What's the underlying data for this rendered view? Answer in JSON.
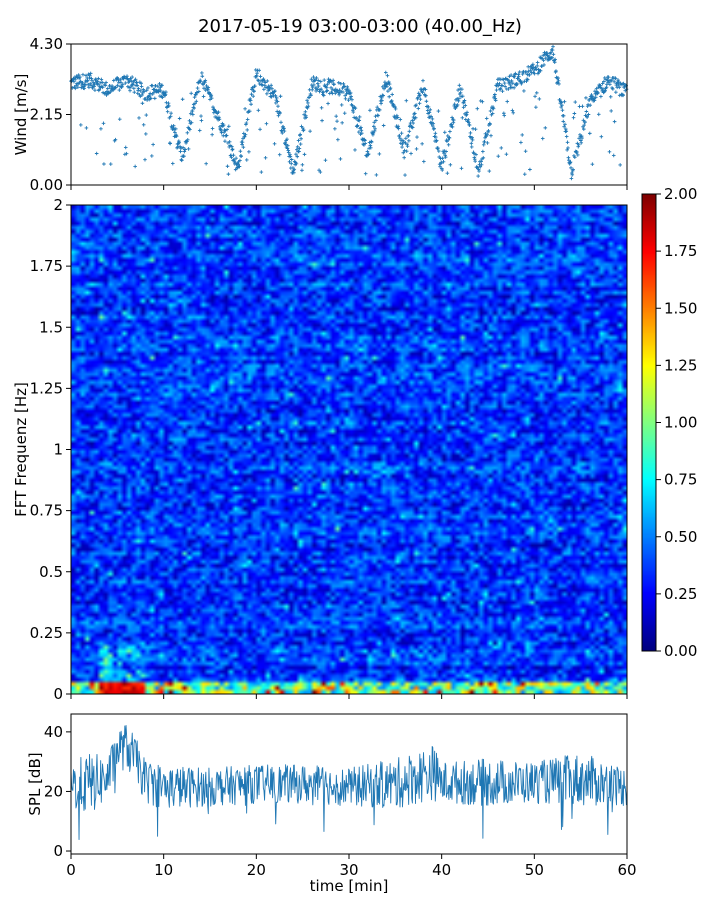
{
  "title": "2017-05-19 03:00-03:00 (40.00_Hz)",
  "chart_data": [
    {
      "type": "scatter",
      "panel": "wind",
      "ylabel": "Wind [m/s]",
      "ylim": [
        0,
        4.3
      ],
      "xlim": [
        0,
        60
      ],
      "yticks": [
        "0.00",
        "2.15",
        "4.30"
      ],
      "yticks_values": [
        0,
        2.15,
        4.3
      ],
      "xticks_values": [
        0,
        10,
        20,
        30,
        40,
        50,
        60
      ],
      "xticklabels_visible": false,
      "marker": "+",
      "color": "#1f77b4",
      "series_anchors": {
        "x": [
          0,
          2,
          4,
          6,
          8,
          10,
          12,
          14,
          16,
          18,
          20,
          22,
          24,
          26,
          28,
          30,
          32,
          34,
          36,
          38,
          40,
          42,
          44,
          46,
          48,
          50,
          52,
          54,
          56,
          58,
          60
        ],
        "y": [
          3.1,
          3.2,
          2.9,
          3.2,
          2.8,
          2.9,
          0.8,
          3.3,
          2.0,
          0.5,
          3.4,
          2.7,
          0.4,
          3.1,
          3.0,
          2.8,
          0.9,
          3.3,
          1.0,
          3.1,
          0.5,
          3.0,
          0.4,
          3.0,
          3.2,
          3.5,
          4.1,
          0.4,
          2.5,
          3.2,
          2.8
        ]
      }
    },
    {
      "type": "heatmap",
      "panel": "spectrogram",
      "ylabel": "FFT Frequenz [Hz]",
      "ylim": [
        0,
        2
      ],
      "xlim": [
        0,
        60
      ],
      "yticks": [
        "0",
        "0.25",
        "0.5",
        "0.75",
        "1",
        "1.25",
        "1.5",
        "1.75",
        "2"
      ],
      "yticks_values": [
        0,
        0.25,
        0.5,
        0.75,
        1,
        1.25,
        1.5,
        1.75,
        2
      ],
      "xticks_values": [
        0,
        10,
        20,
        30,
        40,
        50,
        60
      ],
      "xticklabels_visible": false,
      "colormap": "jet",
      "vmin": 0,
      "vmax": 2,
      "colorbar_ticks": [
        "0.00",
        "0.25",
        "0.50",
        "0.75",
        "1.00",
        "1.25",
        "1.50",
        "1.75",
        "2.00"
      ],
      "colorbar_ticks_values": [
        0,
        0.25,
        0.5,
        0.75,
        1,
        1.25,
        1.5,
        1.75,
        2
      ],
      "n_time_bins": 120,
      "n_freq_bins": 120,
      "typical_value": 0.35,
      "low_freq_row_max": 2.0,
      "hotspot_x_range_min": [
        3,
        8
      ]
    },
    {
      "type": "line",
      "panel": "spl",
      "xlabel": "time [min]",
      "ylabel": "SPL [dB]",
      "xlim": [
        0,
        60
      ],
      "ylim": [
        -1,
        46
      ],
      "xticks": [
        "0",
        "10",
        "20",
        "30",
        "40",
        "50",
        "60"
      ],
      "xticks_values": [
        0,
        10,
        20,
        30,
        40,
        50,
        60
      ],
      "yticks": [
        "0",
        "20",
        "40"
      ],
      "yticks_values": [
        0,
        20,
        40
      ],
      "color": "#1f77b4",
      "envelope": {
        "x": [
          0,
          2,
          4,
          5,
          6,
          7,
          8,
          10,
          15,
          20,
          25,
          30,
          35,
          39,
          40,
          45,
          50,
          55,
          60
        ],
        "low": [
          14,
          12,
          17,
          27,
          27,
          24,
          16,
          14,
          15,
          16,
          16,
          15,
          14,
          17,
          16,
          15,
          16,
          15,
          15
        ],
        "high": [
          30,
          33,
          32,
          41,
          43,
          38,
          31,
          29,
          28,
          29,
          29,
          28,
          31,
          36,
          30,
          31,
          30,
          33,
          28
        ]
      }
    }
  ]
}
